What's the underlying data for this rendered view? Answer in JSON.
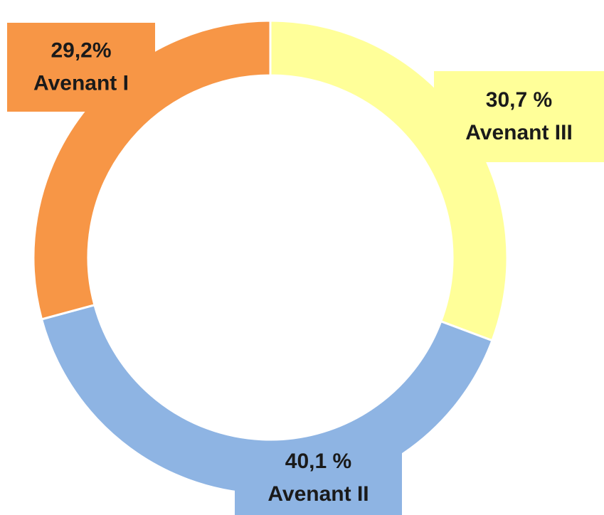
{
  "chart_data": {
    "type": "donut",
    "categories": [
      "Avenant III",
      "Avenant II",
      "Avenant I"
    ],
    "values": [
      30.7,
      40.1,
      29.2
    ],
    "value_labels": [
      "30,7 %",
      "40,1 %",
      "29,2%"
    ],
    "colors": [
      "#ffff99",
      "#8eb4e3",
      "#f79646"
    ]
  }
}
